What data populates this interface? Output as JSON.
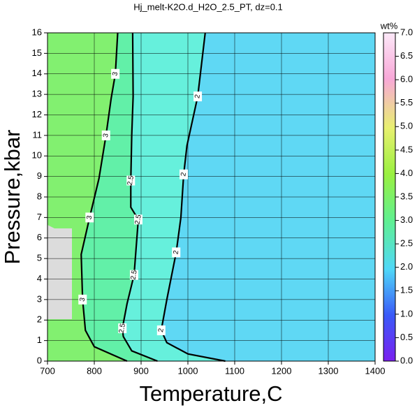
{
  "chart_data": {
    "type": "contour",
    "title": "Hj_melt-K2O.d_H2O_2.5_PT, dz=0.1",
    "x_label": "Temperature,C",
    "y_label": "Pressure,kbar",
    "xlim": [
      700,
      1400
    ],
    "xticks": [
      700,
      800,
      900,
      1000,
      1100,
      1200,
      1300,
      1400
    ],
    "ylim": [
      0,
      16
    ],
    "yticks": [
      0,
      1,
      2,
      3,
      4,
      5,
      6,
      7,
      8,
      9,
      10,
      11,
      12,
      13,
      14,
      15,
      16
    ],
    "grid": true,
    "background_color": "#5fd8f4",
    "contours": [
      {
        "level": 2,
        "color": "#66f0dc",
        "x": [
          1080,
          1000,
          955,
          943,
          955,
          975,
          985,
          991,
          998,
          1021,
          1037
        ],
        "y": [
          0,
          0.35,
          0.9,
          1.5,
          3,
          5.3,
          7,
          9.1,
          10.5,
          12.9,
          16
        ]
      },
      {
        "level": 2.5,
        "color": "#62f0a8",
        "x": [
          935,
          880,
          862,
          860,
          870,
          885,
          888,
          894,
          878,
          878,
          880,
          883,
          882
        ],
        "y": [
          0,
          0.5,
          1.2,
          1.6,
          2.8,
          4.2,
          5.1,
          6.9,
          7.5,
          8.8,
          11,
          12.9,
          16
        ]
      },
      {
        "level": 3,
        "color": "#82f070",
        "x": [
          870,
          800,
          781,
          775,
          772,
          790,
          810,
          825,
          836,
          845,
          850
        ],
        "y": [
          0,
          0.7,
          1.5,
          3,
          5.2,
          7,
          8.9,
          11,
          12.8,
          14,
          16
        ]
      }
    ],
    "colorbar": {
      "label": "wt%",
      "lim": [
        0,
        7
      ],
      "ticks": [
        {
          "value": 0,
          "label": "0.0"
        },
        {
          "value": 0.5,
          "label": "0.5"
        },
        {
          "value": 1,
          "label": "1.0"
        },
        {
          "value": 1.5,
          "label": "1.5"
        },
        {
          "value": 2,
          "label": "2.0"
        },
        {
          "value": 2.5,
          "label": "2.5"
        },
        {
          "value": 3,
          "label": "3.0"
        },
        {
          "value": 3.5,
          "label": "3.5"
        },
        {
          "value": 4,
          "label": "4.0"
        },
        {
          "value": 4.5,
          "label": "4.5"
        },
        {
          "value": 5,
          "label": "5.0"
        },
        {
          "value": 5.5,
          "label": "5.5"
        },
        {
          "value": 6,
          "label": "6.0"
        },
        {
          "value": 6.5,
          "label": "6.5"
        },
        {
          "value": 7,
          "label": "7.0"
        }
      ]
    }
  }
}
